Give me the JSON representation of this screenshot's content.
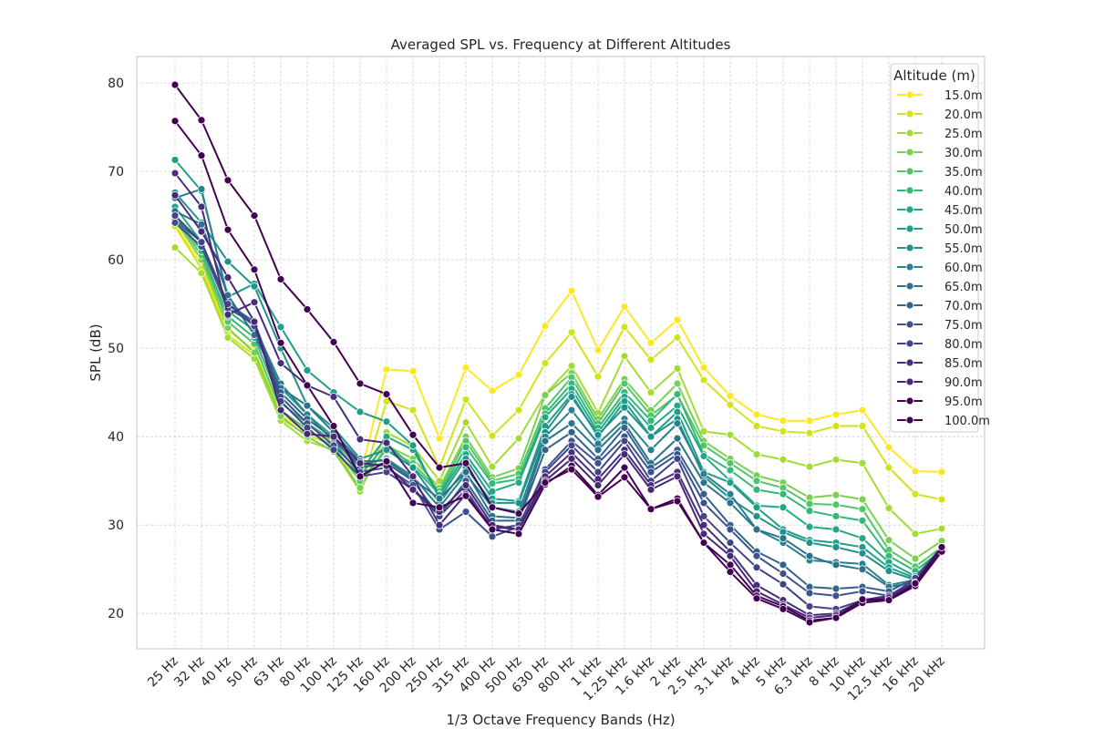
{
  "chart_data": {
    "type": "line",
    "title": "Averaged SPL vs. Frequency at Different Altitudes",
    "xlabel": "1/3 Octave Frequency Bands (Hz)",
    "ylabel": "SPL (dB)",
    "ylim": [
      16,
      83
    ],
    "yticks": [
      20,
      30,
      40,
      50,
      60,
      70,
      80
    ],
    "grid": true,
    "legend_position": "top-right",
    "legend_title": "Altitude (m)",
    "categories": [
      "25 Hz",
      "32 Hz",
      "40 Hz",
      "50 Hz",
      "63 Hz",
      "80 Hz",
      "100 Hz",
      "125 Hz",
      "160 Hz",
      "200 Hz",
      "250 Hz",
      "315 Hz",
      "400 Hz",
      "500 Hz",
      "630 Hz",
      "800 Hz",
      "1 kHz",
      "1.25 kHz",
      "1.6 kHz",
      "2 kHz",
      "2.5 kHz",
      "3.1 kHz",
      "4 kHz",
      "5 kHz",
      "6.3 kHz",
      "8 kHz",
      "10 kHz",
      "12.5 kHz",
      "16 kHz",
      "20 kHz"
    ],
    "series": [
      {
        "name": "15.0m",
        "color": "#fde725",
        "values": [
          64.0,
          59.5,
          52.0,
          49.8,
          42.5,
          40.5,
          39.5,
          35.5,
          47.6,
          47.4,
          39.8,
          47.8,
          45.2,
          47.0,
          52.5,
          56.5,
          49.8,
          54.7,
          50.6,
          53.2,
          47.8,
          44.6,
          42.5,
          41.8,
          41.8,
          42.5,
          43.0,
          38.8,
          36.1,
          36.0
        ]
      },
      {
        "name": "20.0m",
        "color": "#d2e21b",
        "values": [
          63.8,
          59.0,
          51.5,
          49.2,
          42.0,
          40.2,
          39.0,
          34.0,
          44.0,
          43.0,
          36.5,
          44.2,
          40.1,
          43.0,
          48.3,
          51.8,
          46.8,
          52.4,
          48.7,
          51.2,
          46.4,
          43.6,
          41.2,
          40.6,
          40.4,
          41.2,
          41.2,
          36.5,
          33.5,
          32.9
        ]
      },
      {
        "name": "25.0m",
        "color": "#a5db36",
        "values": [
          61.4,
          58.5,
          51.2,
          48.8,
          41.8,
          39.5,
          38.5,
          33.8,
          40.5,
          38.9,
          35.0,
          41.6,
          36.6,
          39.8,
          44.8,
          48.0,
          42.7,
          49.1,
          45.0,
          47.7,
          40.6,
          40.2,
          38.0,
          37.4,
          36.6,
          37.4,
          37.0,
          31.9,
          29.0,
          29.6
        ]
      },
      {
        "name": "30.0m",
        "color": "#7ad151",
        "values": [
          64.5,
          60.0,
          52.3,
          49.5,
          42.3,
          40.0,
          38.3,
          34.2,
          39.0,
          37.5,
          34.2,
          40.0,
          35.4,
          36.4,
          44.7,
          47.2,
          42.0,
          46.5,
          43.0,
          46.0,
          39.5,
          37.5,
          35.6,
          34.8,
          33.1,
          33.4,
          32.9,
          28.3,
          26.2,
          28.2
        ]
      },
      {
        "name": "35.0m",
        "color": "#52c569",
        "values": [
          64.8,
          60.5,
          53.0,
          50.5,
          43.0,
          40.8,
          38.8,
          35.0,
          38.5,
          37.0,
          33.8,
          39.5,
          35.0,
          35.8,
          43.2,
          46.7,
          41.5,
          46.0,
          42.4,
          44.7,
          39.0,
          37.0,
          35.0,
          34.2,
          32.4,
          32.3,
          31.8,
          27.2,
          25.3,
          27.5
        ]
      },
      {
        "name": "40.0m",
        "color": "#35b779",
        "values": [
          65.0,
          61.0,
          53.6,
          51.2,
          43.8,
          41.5,
          39.5,
          35.6,
          39.2,
          36.6,
          33.5,
          38.8,
          34.7,
          35.2,
          42.6,
          46.0,
          41.0,
          45.0,
          41.8,
          44.8,
          38.0,
          36.2,
          34.0,
          33.5,
          31.6,
          31.0,
          30.5,
          26.5,
          24.8,
          27.2
        ]
      },
      {
        "name": "45.0m",
        "color": "#22a884",
        "values": [
          66.0,
          62.0,
          54.2,
          52.0,
          45.5,
          42.5,
          40.0,
          36.0,
          40.0,
          38.5,
          33.4,
          38.0,
          33.8,
          34.8,
          42.2,
          45.4,
          40.5,
          44.5,
          41.0,
          43.5,
          37.8,
          35.0,
          32.2,
          32.0,
          29.8,
          29.5,
          28.5,
          25.8,
          24.2,
          27.5
        ]
      },
      {
        "name": "50.0m",
        "color": "#1f9e89",
        "values": [
          71.3,
          67.8,
          55.8,
          57.3,
          52.4,
          47.5,
          45.0,
          42.8,
          41.7,
          39.0,
          33.0,
          37.5,
          33.0,
          32.7,
          41.2,
          44.8,
          40.0,
          44.0,
          40.0,
          42.8,
          36.0,
          34.8,
          32.0,
          29.5,
          28.3,
          28.0,
          27.5,
          25.2,
          24.0,
          27.3
        ]
      },
      {
        "name": "55.0m",
        "color": "#21918c",
        "values": [
          67.6,
          64.2,
          59.8,
          57.0,
          50.0,
          43.5,
          41.0,
          37.5,
          38.5,
          36.5,
          32.5,
          36.5,
          32.5,
          32.5,
          40.5,
          44.5,
          40.2,
          43.3,
          40.0,
          42.0,
          35.5,
          33.0,
          31.0,
          29.2,
          28.0,
          27.5,
          26.8,
          24.8,
          23.8,
          27.2
        ]
      },
      {
        "name": "60.0m",
        "color": "#26828e",
        "values": [
          67.0,
          68.0,
          55.5,
          52.5,
          46.0,
          42.5,
          39.5,
          36.8,
          37.5,
          35.5,
          32.0,
          35.8,
          32.0,
          31.5,
          40.0,
          43.0,
          39.2,
          42.0,
          38.5,
          41.5,
          35.8,
          33.5,
          29.5,
          28.0,
          26.0,
          25.8,
          25.6,
          23.2,
          23.8,
          27.3
        ]
      },
      {
        "name": "65.0m",
        "color": "#2c728e",
        "values": [
          65.5,
          64.0,
          56.0,
          51.5,
          45.5,
          43.5,
          40.5,
          37.2,
          37.3,
          35.2,
          33.0,
          36.0,
          31.0,
          30.8,
          39.5,
          41.5,
          38.5,
          41.5,
          37.0,
          39.8,
          34.8,
          32.5,
          29.5,
          28.5,
          26.5,
          25.5,
          25.0,
          23.0,
          23.5,
          27.5
        ]
      },
      {
        "name": "70.0m",
        "color": "#33638d",
        "values": [
          64.5,
          62.0,
          55.0,
          53.0,
          45.0,
          42.0,
          39.8,
          36.5,
          37.0,
          35.0,
          31.0,
          35.0,
          30.5,
          30.5,
          38.5,
          40.5,
          37.5,
          41.0,
          36.5,
          38.5,
          33.5,
          30.0,
          27.0,
          25.5,
          23.0,
          22.8,
          23.0,
          22.5,
          24.0,
          27.2
        ]
      },
      {
        "name": "75.0m",
        "color": "#3b528b",
        "values": [
          64.2,
          61.5,
          54.5,
          52.8,
          44.5,
          41.5,
          39.0,
          36.0,
          36.5,
          34.5,
          29.5,
          31.5,
          28.7,
          29.8,
          36.3,
          39.5,
          37.0,
          40.0,
          36.0,
          38.0,
          32.5,
          29.5,
          26.5,
          24.5,
          22.3,
          22.0,
          22.5,
          22.0,
          23.8,
          27.5
        ]
      },
      {
        "name": "80.0m",
        "color": "#414487",
        "values": [
          65.0,
          62.0,
          55.0,
          52.5,
          44.0,
          41.0,
          38.5,
          35.5,
          36.0,
          34.0,
          31.0,
          34.0,
          29.5,
          30.0,
          36.0,
          39.0,
          36.0,
          39.5,
          35.0,
          37.5,
          31.0,
          28.0,
          25.2,
          23.3,
          20.8,
          20.5,
          21.5,
          21.8,
          24.0,
          27.5
        ]
      },
      {
        "name": "85.0m",
        "color": "#472d7b",
        "values": [
          69.8,
          66.0,
          53.8,
          55.2,
          48.3,
          45.8,
          44.5,
          39.7,
          39.3,
          35.5,
          30.0,
          33.5,
          29.8,
          29.5,
          35.5,
          38.2,
          35.2,
          38.5,
          34.5,
          36.0,
          30.0,
          27.0,
          23.2,
          21.5,
          19.8,
          20.0,
          21.5,
          22.0,
          23.5,
          27.5
        ]
      },
      {
        "name": "90.0m",
        "color": "#482878",
        "values": [
          67.3,
          63.2,
          58.0,
          53.0,
          43.0,
          40.3,
          40.0,
          37.0,
          36.7,
          34.0,
          31.5,
          34.5,
          30.0,
          29.5,
          35.0,
          37.5,
          34.5,
          38.0,
          34.0,
          35.5,
          29.0,
          26.5,
          22.5,
          21.0,
          19.5,
          19.8,
          21.3,
          21.8,
          23.3,
          27.2
        ]
      },
      {
        "name": "95.0m",
        "color": "#440154",
        "values": [
          75.7,
          71.8,
          63.4,
          58.9,
          50.6,
          45.8,
          41.2,
          35.5,
          37.2,
          32.5,
          32.0,
          33.3,
          29.5,
          29.0,
          34.6,
          36.7,
          33.4,
          36.5,
          31.8,
          33.0,
          28.0,
          25.5,
          22.0,
          20.8,
          19.2,
          19.5,
          21.2,
          21.5,
          23.1,
          27.0
        ]
      },
      {
        "name": "100.0m",
        "color": "#440154",
        "values": [
          79.8,
          75.8,
          69.0,
          65.0,
          57.8,
          54.4,
          50.7,
          46.0,
          44.8,
          40.2,
          36.5,
          37.0,
          32.0,
          31.3,
          34.8,
          36.3,
          33.2,
          35.4,
          31.8,
          32.7,
          28.0,
          24.7,
          21.7,
          20.5,
          19.0,
          19.5,
          21.6,
          21.5,
          23.4,
          27.5
        ]
      }
    ]
  }
}
